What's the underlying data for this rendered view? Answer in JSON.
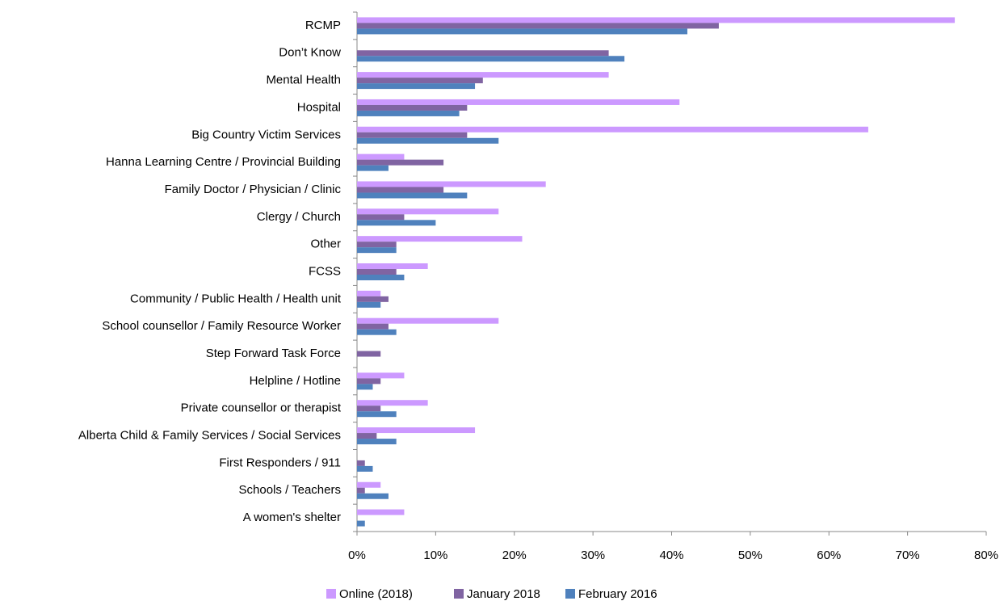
{
  "chart_data": {
    "type": "bar",
    "orientation": "horizontal",
    "categories": [
      "RCMP",
      "Don’t Know",
      "Mental Health",
      "Hospital",
      "Big Country Victim Services",
      "Hanna Learning Centre / Provincial Building",
      "Family Doctor / Physician / Clinic",
      "Clergy / Church",
      "Other",
      "FCSS",
      "Community / Public Health / Health unit",
      "School counsellor / Family Resource Worker",
      "Step Forward Task Force",
      "Helpline / Hotline",
      "Private counsellor or therapist",
      "Alberta Child & Family Services / Social Services",
      "First Responders / 911",
      "Schools / Teachers",
      "A women's shelter"
    ],
    "series": [
      {
        "name": "Online (2018)",
        "color": "#cc99ff",
        "values": [
          76,
          0,
          32,
          41,
          65,
          6,
          24,
          18,
          21,
          9,
          3,
          18,
          0,
          6,
          9,
          15,
          0,
          3,
          6
        ]
      },
      {
        "name": "January 2018",
        "color": "#8064a2",
        "values": [
          46,
          32,
          16,
          14,
          14,
          11,
          11,
          6,
          5,
          5,
          4,
          4,
          3,
          3,
          3,
          2.5,
          1,
          1,
          0
        ]
      },
      {
        "name": "February 2016",
        "color": "#4f81bd",
        "values": [
          42,
          34,
          15,
          13,
          18,
          4,
          14,
          10,
          5,
          6,
          3,
          5,
          0,
          2,
          5,
          5,
          2,
          4,
          1
        ]
      }
    ],
    "xlim": [
      0,
      80
    ],
    "xticks": [
      {
        "value": 0,
        "label": "0%"
      },
      {
        "value": 10,
        "label": "10%"
      },
      {
        "value": 20,
        "label": "20%"
      },
      {
        "value": 30,
        "label": "30%"
      },
      {
        "value": 40,
        "label": "40%"
      },
      {
        "value": 50,
        "label": "50%"
      },
      {
        "value": 60,
        "label": "60%"
      },
      {
        "value": 70,
        "label": "70%"
      },
      {
        "value": 80,
        "label": "80%"
      }
    ],
    "legend": "bottom"
  }
}
